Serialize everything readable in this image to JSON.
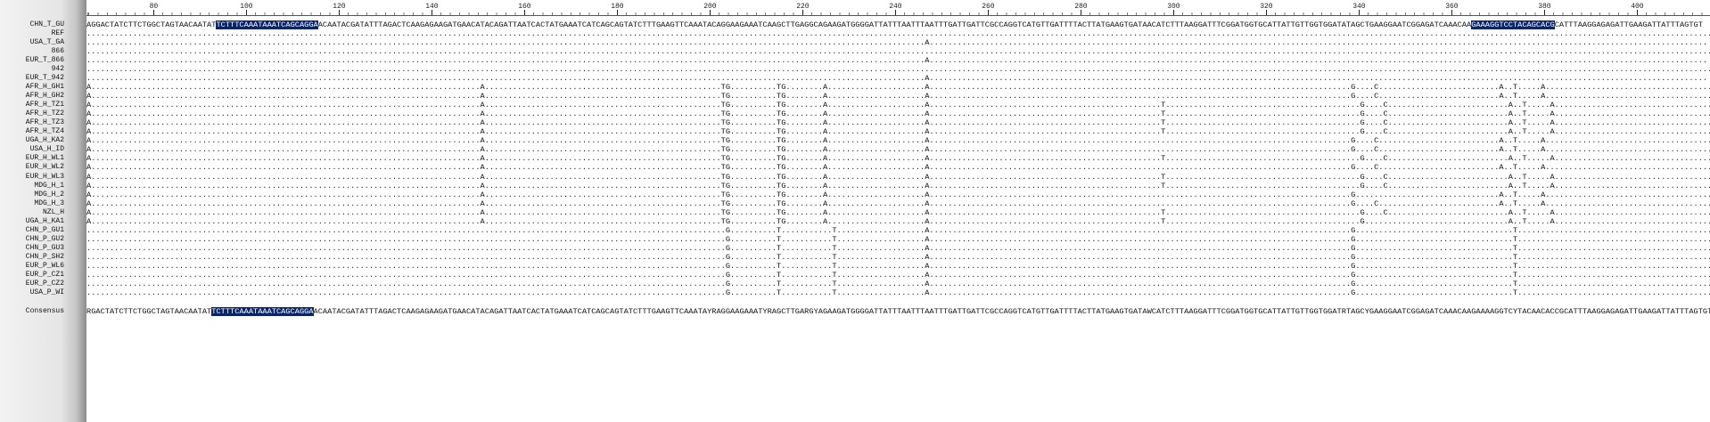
{
  "ruler": {
    "ticks": [
      80,
      100,
      120,
      140,
      160,
      180,
      200,
      220,
      240,
      260,
      280,
      300,
      320,
      340,
      360,
      380,
      400
    ]
  },
  "alignment": {
    "rows": [
      {
        "name": "CHN_T_GU",
        "segments": [
          {
            "text": "AGGACTATCTTCTGGCTAGTAACAATAT",
            "highlight": false
          },
          {
            "text": "TCTTTCAAATAAATCAGCAGGA",
            "highlight": true
          },
          {
            "text": "ACAATACGATATTTAGACTCAAGAGAAGATGAACATACAGATTAATCACTATGAAATCATCAGCAGTATCTTTGAAGTTCAAATACAGGAAGAAATCAAGCTTGAGGCAGAAGATGGGGATTATTTAATTTAATTTGATTGATTCGCCAGGTCATGTTGATTTTACTTATGAAGTGATAACATCTTTAAGGATTTCGGATGGTGCATTATTGTTGGTGGATATAGCTGAAGGAATCGGAGATCAAACAA",
            "highlight": false
          },
          {
            "text": "GAAAGGTCCTACAGCACG",
            "highlight": true
          },
          {
            "text": "CATTTAAGGAGAGATTGAAGATTATTTAGTGT",
            "highlight": false
          }
        ]
      },
      {
        "name": "REF",
        "segments": [
          {
            "text": "..................................................................................................................................................................................................................................................................................................................................................................",
            "highlight": false
          }
        ]
      },
      {
        "name": "USA_T_GA",
        "segments": [
          {
            "text": ".....................................................................................................................................................................................A........................................................................................................................................................................",
            "highlight": false
          }
        ]
      },
      {
        "name": "866",
        "segments": [
          {
            "text": "..................................................................................................................................................................................................................................................................................................................................................................",
            "highlight": false
          }
        ]
      },
      {
        "name": "EUR_T_866",
        "segments": [
          {
            "text": ".....................................................................................................................................................................................A........................................................................................................................................................................",
            "highlight": false
          }
        ]
      },
      {
        "name": "942",
        "segments": [
          {
            "text": "..................................................................................................................................................................................................................................................................................................................................................................",
            "highlight": false
          }
        ]
      },
      {
        "name": "EUR_T_942",
        "segments": [
          {
            "text": ".....................................................................................................................................................................................A........................................................................................................................................................................",
            "highlight": false
          }
        ]
      },
      {
        "name": "AFR_H_GH1",
        "segments": [
          {
            "text": "A....................................................................................A...................................................TG..........TG........A.....................A...........................................................................................G....C..........................A..T.....A.....................................",
            "highlight": false
          }
        ]
      },
      {
        "name": "AFR_H_GH2",
        "segments": [
          {
            "text": "A....................................................................................A...................................................TG..........TG........A.....................A...........................................................................................G....C..........................A..T.....A.....................................",
            "highlight": false
          }
        ]
      },
      {
        "name": "AFR_H_TZ1",
        "segments": [
          {
            "text": "A....................................................................................A...................................................TG..........TG........A.....................A..................................................T..........................................G....C..........................A..T.....A.....................................",
            "highlight": false
          }
        ]
      },
      {
        "name": "AFR_H_TZ2",
        "segments": [
          {
            "text": "A....................................................................................A...................................................TG..........TG........A.....................A..................................................T..........................................G....C..........................A..T.....A.....................................",
            "highlight": false
          }
        ]
      },
      {
        "name": "AFR_H_TZ3",
        "segments": [
          {
            "text": "A....................................................................................A...................................................TG..........TG........A.....................A..................................................T..........................................G....C..........................A..T.....A.....................................",
            "highlight": false
          }
        ]
      },
      {
        "name": "AFR_H_TZ4",
        "segments": [
          {
            "text": "A....................................................................................A...................................................TG..........TG........A.....................A..................................................T..........................................G....C..........................A..T.....A.....................................",
            "highlight": false
          }
        ]
      },
      {
        "name": "UGA_H_KA2",
        "segments": [
          {
            "text": "A....................................................................................A...................................................TG..........TG........A.....................A...........................................................................................G....C..........................A..T.....A.....................................",
            "highlight": false
          }
        ]
      },
      {
        "name": "USA_H_ID",
        "segments": [
          {
            "text": "A....................................................................................A...................................................TG..........TG........A.....................A...........................................................................................G....C..........................A..T.....A.....................................",
            "highlight": false
          }
        ]
      },
      {
        "name": "EUR_H_WL1",
        "segments": [
          {
            "text": "A....................................................................................A...................................................TG..........TG........A.....................A..................................................T..........................................G....C..........................A..T.....A.....................................",
            "highlight": false
          }
        ]
      },
      {
        "name": "EUR_H_WL2",
        "segments": [
          {
            "text": "A....................................................................................A...................................................TG..........TG........A.....................A...........................................................................................G....C..........................A..T.....A.....................................",
            "highlight": false
          }
        ]
      },
      {
        "name": "EUR_H_WL3",
        "segments": [
          {
            "text": "A....................................................................................A...................................................TG..........TG........A.....................A..................................................T..........................................G....C..........................A..T.....A.....................................",
            "highlight": false
          }
        ]
      },
      {
        "name": "MDG_H_1",
        "segments": [
          {
            "text": "A....................................................................................A...................................................TG..........TG........A.....................A..................................................T..........................................G....C..........................A..T.....A.....................................",
            "highlight": false
          }
        ]
      },
      {
        "name": "MDG_H_2",
        "segments": [
          {
            "text": "A....................................................................................A...................................................TG..........TG........A.....................A...........................................................................................G...............................A..T.....A.....................................",
            "highlight": false
          }
        ]
      },
      {
        "name": "MDG_H_3",
        "segments": [
          {
            "text": "A....................................................................................A...................................................TG..........TG........A.....................A...........................................................................................G....C..........................A..T.....A.....................................",
            "highlight": false
          }
        ]
      },
      {
        "name": "NZL_H",
        "segments": [
          {
            "text": "A....................................................................................A...................................................TG..........TG........A.....................A..................................................T..........................................G....C..........................A..T.....A.....................................",
            "highlight": false
          }
        ]
      },
      {
        "name": "UGA_H_KA1",
        "segments": [
          {
            "text": "A....................................................................................A...................................................TG..........TG........A.....................A..................................................T..........................................G...............................A..T.....A.....................................",
            "highlight": false
          }
        ]
      },
      {
        "name": "CHN_P_GU1",
        "segments": [
          {
            "text": "..........................................................................................................................................G..........T...........T...................A...........................................................................................G..................................T...........................................",
            "highlight": false
          }
        ]
      },
      {
        "name": "CHN_P_GU2",
        "segments": [
          {
            "text": "..........................................................................................................................................G..........T...........T...................A...........................................................................................G..................................T...........................................",
            "highlight": false
          }
        ]
      },
      {
        "name": "CHN_P_GU3",
        "segments": [
          {
            "text": "..........................................................................................................................................G..........T...........T...................A...........................................................................................G..................................T...........................................",
            "highlight": false
          }
        ]
      },
      {
        "name": "CHN_P_SH2",
        "segments": [
          {
            "text": "..........................................................................................................................................G..........T...........T...................A...........................................................................................G..................................T...........................................",
            "highlight": false
          }
        ]
      },
      {
        "name": "EUR_P_WL6",
        "segments": [
          {
            "text": "..........................................................................................................................................G..........T...........T...................A...........................................................................................G..................................T...........................................",
            "highlight": false
          }
        ]
      },
      {
        "name": "EUR_P_CZ1",
        "segments": [
          {
            "text": "..........................................................................................................................................G..........T...........T...................A...........................................................................................G..................................T...........................................",
            "highlight": false
          }
        ]
      },
      {
        "name": "EUR_P_CZ2",
        "segments": [
          {
            "text": "..........................................................................................................................................G..........T...........T...................A...........................................................................................G..................................T...........................................",
            "highlight": false
          }
        ]
      },
      {
        "name": "USA_P_WI",
        "segments": [
          {
            "text": "..........................................................................................................................................G..........T...........T...................A...........................................................................................G..................................T...........................................",
            "highlight": false
          }
        ]
      }
    ],
    "consensus": {
      "name": "Consensus",
      "segments": [
        {
          "text": "RGACTATCTTCTGGCTAGTAACAATAT",
          "highlight": false
        },
        {
          "text": "TCTTTCAAATAAATCAGCAGGA",
          "highlight": true
        },
        {
          "text": "ACAATACGATATTTAGACTCAAGAGAAGATGAACATACAGATTAATCACTATGAAATCATCAGCAGTATCTTTGAAGTTCAAATAYRAGGAAGAAATYRAGCTTGARGYAGAAGATGGGGATTATTTAATTTAATTTGATTGATTCGCCAGGTCATGTTGATTTTACTTATGAAGTGATAWCATCTTTAAGGATTTCGGATGGTGCATTATTGTTGGTGGATRTAGCYGAAGGAATCGGAGATCAAACAAGAAAAGGTCYTACAACACCGCATTTAAGGAGAGATTGAAGATTATTTAGTGT",
          "highlight": false
        }
      ]
    }
  }
}
